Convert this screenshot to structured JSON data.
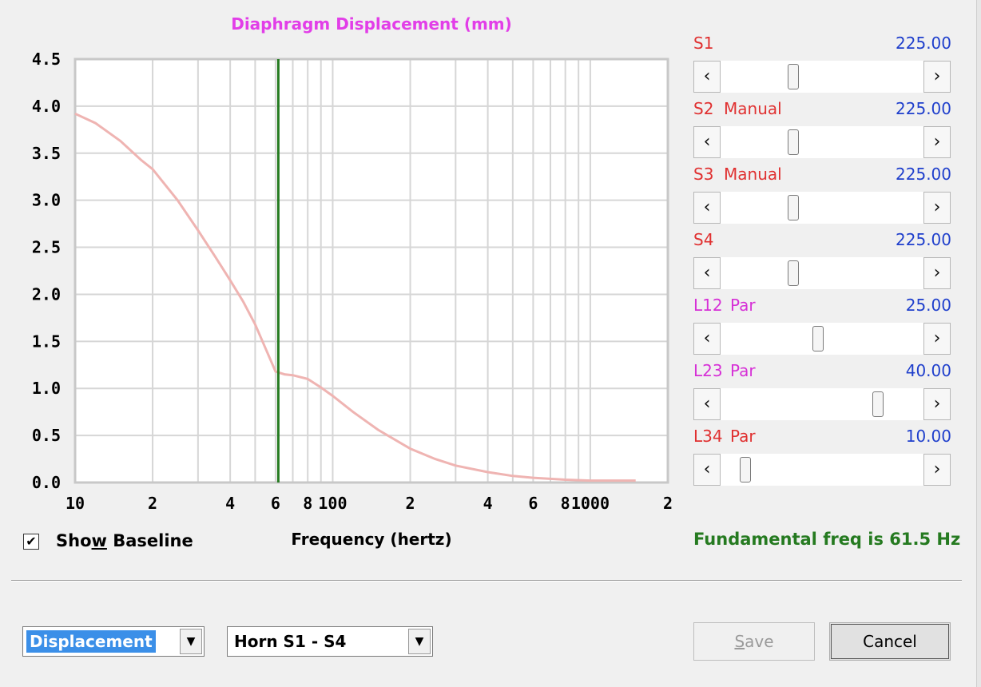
{
  "chart_data": {
    "type": "line",
    "title": "Diaphragm Displacement (mm)",
    "xlabel": "Frequency (hertz)",
    "ylabel": "",
    "x_scale": "log",
    "xlim": [
      10,
      2000
    ],
    "ylim": [
      0,
      4.5
    ],
    "grid": true,
    "y_ticks": [
      "4.5",
      "4.0",
      "3.5",
      "3.0",
      "2.5",
      "2.0",
      "1.5",
      "1.0",
      "0.5",
      "0.0"
    ],
    "x_ticks": [
      {
        "value": 10,
        "label": "10"
      },
      {
        "value": 20,
        "label": "2"
      },
      {
        "value": 40,
        "label": "4"
      },
      {
        "value": 60,
        "label": "6"
      },
      {
        "value": 80,
        "label": "8"
      },
      {
        "value": 100,
        "label": "100"
      },
      {
        "value": 200,
        "label": "2"
      },
      {
        "value": 400,
        "label": "4"
      },
      {
        "value": 600,
        "label": "6"
      },
      {
        "value": 800,
        "label": "8"
      },
      {
        "value": 1000,
        "label": "1000"
      },
      {
        "value": 2000,
        "label": "2"
      }
    ],
    "series": [
      {
        "color": "#efb4b2",
        "x": [
          10,
          12,
          15,
          18,
          20,
          25,
          30,
          35,
          40,
          45,
          50,
          55,
          60,
          65,
          70,
          80,
          90,
          100,
          120,
          150,
          200,
          250,
          300,
          400,
          500,
          600,
          800,
          1000,
          1500
        ],
        "y": [
          3.92,
          3.82,
          3.63,
          3.43,
          3.33,
          3.0,
          2.68,
          2.4,
          2.15,
          1.92,
          1.68,
          1.42,
          1.18,
          1.15,
          1.14,
          1.1,
          1.01,
          0.92,
          0.75,
          0.56,
          0.36,
          0.25,
          0.18,
          0.11,
          0.07,
          0.05,
          0.03,
          0.02,
          0.02
        ]
      }
    ],
    "marker_line": {
      "x": 61.5,
      "color": "#257a20"
    }
  },
  "show_baseline": {
    "checked": true,
    "label_before": "Sho",
    "label_underlined": "w",
    "label_after": " Baseline",
    "check_glyph": "✔"
  },
  "sliders": [
    {
      "name": "S1",
      "mode": "",
      "value": "225.00",
      "color": "#e03030",
      "position": 0.35
    },
    {
      "name": "S2",
      "mode": "Manual",
      "value": "225.00",
      "color": "#e03030",
      "position": 0.35
    },
    {
      "name": "S3",
      "mode": "Manual",
      "value": "225.00",
      "color": "#e03030",
      "position": 0.35
    },
    {
      "name": "S4",
      "mode": "",
      "value": "225.00",
      "color": "#e03030",
      "position": 0.35
    },
    {
      "name": "L12",
      "mode": "Par",
      "value": "25.00",
      "color": "#d630d6",
      "position": 0.48
    },
    {
      "name": "L23",
      "mode": "Par",
      "value": "40.00",
      "color": "#d630d6",
      "position": 0.79
    },
    {
      "name": "L34",
      "mode": "Par",
      "value": "10.00",
      "color": "#e03030",
      "position": 0.1
    }
  ],
  "arrows": {
    "left": "‹",
    "right": "›",
    "drop": "▼"
  },
  "fundamental_text": "Fundamental freq is 61.5 Hz",
  "plot_type_select": {
    "selected": "Displacement"
  },
  "horn_select": {
    "selected": "Horn S1 - S4"
  },
  "buttons": {
    "save_underlined": "S",
    "save_rest": "ave",
    "cancel": "Cancel"
  },
  "colors": {
    "title": "#e23ee8",
    "curve": "#efb4b2",
    "marker": "#257a20",
    "value": "#1f3fcc",
    "fundamental": "#257a20",
    "selection": "#3b8fe8"
  }
}
